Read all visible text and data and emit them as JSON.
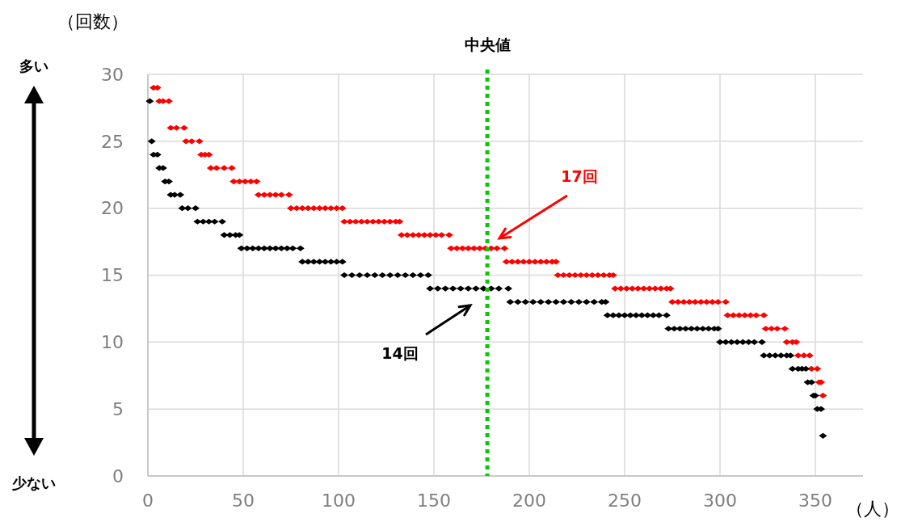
{
  "chart_data": {
    "type": "scatter",
    "ylabel": "（回数）",
    "xlabel": "（人）",
    "xlim": [
      0,
      375
    ],
    "xticks": [
      0,
      50,
      100,
      150,
      200,
      250,
      300,
      350
    ],
    "ylim": [
      0,
      30
    ],
    "yticks": [
      0,
      5,
      10,
      15,
      20,
      25,
      30
    ],
    "grid": true,
    "marker": "diamond",
    "series": [
      {
        "color": "#ff0000",
        "x": [
          3,
          5,
          6,
          8,
          11,
          12,
          15,
          19,
          20,
          23,
          27,
          28,
          30,
          32,
          33,
          36,
          40,
          44,
          45,
          48,
          51,
          54,
          57,
          58,
          61,
          64,
          67,
          70,
          74,
          75,
          78,
          81,
          84,
          87,
          90,
          93,
          96,
          99,
          102,
          103,
          106,
          109,
          112,
          115,
          118,
          121,
          124,
          127,
          130,
          132,
          133,
          136,
          139,
          142,
          145,
          148,
          151,
          154,
          158,
          159,
          162,
          165,
          168,
          171,
          174,
          177,
          180,
          183,
          187,
          188,
          191,
          194,
          197,
          200,
          203,
          206,
          209,
          212,
          214,
          215,
          218,
          221,
          224,
          227,
          230,
          233,
          236,
          239,
          242,
          244,
          245,
          248,
          251,
          254,
          257,
          260,
          263,
          266,
          269,
          272,
          274,
          275,
          278,
          281,
          284,
          287,
          290,
          293,
          296,
          299,
          303,
          304,
          307,
          310,
          313,
          316,
          319,
          323,
          324,
          327,
          330,
          334,
          335,
          338,
          340,
          341,
          344,
          347,
          348,
          351,
          352,
          353,
          354
        ],
        "values": [
          29,
          29,
          28,
          28,
          28,
          26,
          26,
          26,
          25,
          25,
          25,
          24,
          24,
          24,
          23,
          23,
          23,
          23,
          22,
          22,
          22,
          22,
          22,
          21,
          21,
          21,
          21,
          21,
          21,
          20,
          20,
          20,
          20,
          20,
          20,
          20,
          20,
          20,
          20,
          19,
          19,
          19,
          19,
          19,
          19,
          19,
          19,
          19,
          19,
          19,
          18,
          18,
          18,
          18,
          18,
          18,
          18,
          18,
          18,
          17,
          17,
          17,
          17,
          17,
          17,
          17,
          17,
          17,
          17,
          16,
          16,
          16,
          16,
          16,
          16,
          16,
          16,
          16,
          16,
          15,
          15,
          15,
          15,
          15,
          15,
          15,
          15,
          15,
          15,
          15,
          14,
          14,
          14,
          14,
          14,
          14,
          14,
          14,
          14,
          14,
          14,
          13,
          13,
          13,
          13,
          13,
          13,
          13,
          13,
          13,
          13,
          12,
          12,
          12,
          12,
          12,
          12,
          12,
          11,
          11,
          11,
          11,
          10,
          10,
          10,
          9,
          9,
          9,
          8,
          8,
          7,
          7,
          6
        ]
      },
      {
        "color": "#000000",
        "x": [
          1,
          2,
          3,
          5,
          6,
          8,
          9,
          11,
          12,
          14,
          17,
          18,
          21,
          25,
          26,
          29,
          32,
          35,
          39,
          40,
          43,
          46,
          48,
          49,
          52,
          55,
          58,
          61,
          64,
          67,
          70,
          73,
          76,
          80,
          81,
          84,
          87,
          90,
          93,
          96,
          99,
          102,
          103,
          107,
          111,
          115,
          119,
          123,
          127,
          131,
          135,
          139,
          143,
          147,
          148,
          152,
          156,
          160,
          164,
          168,
          172,
          176,
          180,
          184,
          189,
          190,
          194,
          198,
          202,
          206,
          210,
          214,
          218,
          222,
          226,
          230,
          234,
          238,
          240,
          241,
          244,
          247,
          250,
          253,
          256,
          259,
          262,
          265,
          268,
          272,
          273,
          276,
          279,
          282,
          285,
          288,
          291,
          294,
          297,
          299,
          300,
          303,
          306,
          309,
          312,
          315,
          318,
          322,
          323,
          326,
          329,
          332,
          335,
          337,
          338,
          341,
          343,
          345,
          346,
          348,
          349,
          350,
          351,
          353,
          354
        ],
        "values": [
          28,
          25,
          24,
          24,
          23,
          23,
          22,
          22,
          21,
          21,
          21,
          20,
          20,
          20,
          19,
          19,
          19,
          19,
          19,
          18,
          18,
          18,
          18,
          17,
          17,
          17,
          17,
          17,
          17,
          17,
          17,
          17,
          17,
          17,
          16,
          16,
          16,
          16,
          16,
          16,
          16,
          16,
          15,
          15,
          15,
          15,
          15,
          15,
          15,
          15,
          15,
          15,
          15,
          15,
          14,
          14,
          14,
          14,
          14,
          14,
          14,
          14,
          14,
          14,
          14,
          13,
          13,
          13,
          13,
          13,
          13,
          13,
          13,
          13,
          13,
          13,
          13,
          13,
          13,
          12,
          12,
          12,
          12,
          12,
          12,
          12,
          12,
          12,
          12,
          12,
          11,
          11,
          11,
          11,
          11,
          11,
          11,
          11,
          11,
          11,
          10,
          10,
          10,
          10,
          10,
          10,
          10,
          10,
          9,
          9,
          9,
          9,
          9,
          9,
          8,
          8,
          8,
          8,
          7,
          7,
          6,
          6,
          5,
          5,
          3
        ]
      }
    ],
    "ref_lines": [
      {
        "axis": "x",
        "value": 178,
        "label": "中央値",
        "color": "#00cc00",
        "line_style": "dotted"
      }
    ],
    "annotations": [
      "多い",
      "少ない",
      "17回",
      "14回"
    ]
  }
}
